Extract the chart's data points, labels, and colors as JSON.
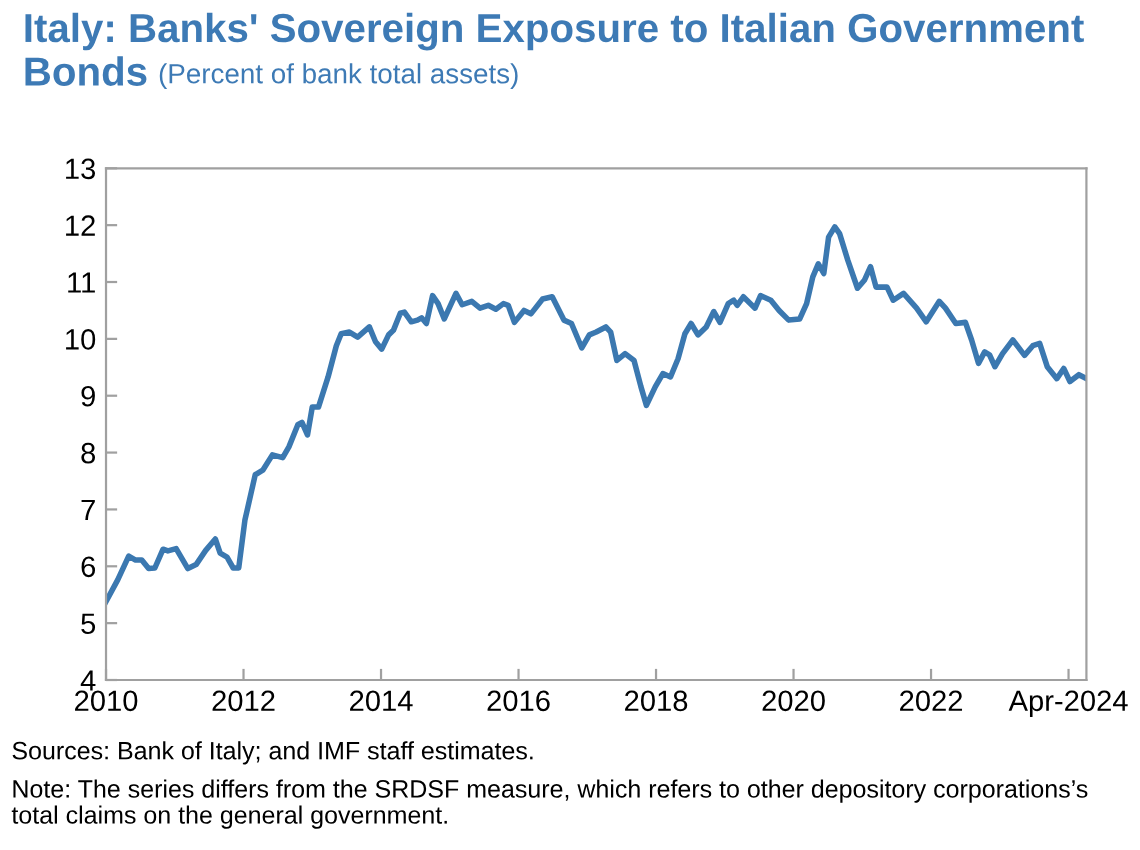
{
  "chart_data": {
    "type": "line",
    "title": "Italy: Banks' Sovereign Exposure to Italian Government Bonds",
    "subtitle": "(Percent of bank total assets)",
    "x": [
      2010.0,
      2010.17,
      2010.33,
      2010.43,
      2010.52,
      2010.62,
      2010.71,
      2010.83,
      2010.9,
      2011.02,
      2011.19,
      2011.31,
      2011.45,
      2011.59,
      2011.66,
      2011.76,
      2011.85,
      2011.93,
      2012.02,
      2012.17,
      2012.28,
      2012.42,
      2012.57,
      2012.66,
      2012.79,
      2012.85,
      2012.93,
      2013.0,
      2013.09,
      2013.23,
      2013.35,
      2013.42,
      2013.54,
      2013.66,
      2013.83,
      2013.92,
      2014.01,
      2014.11,
      2014.18,
      2014.28,
      2014.34,
      2014.44,
      2014.53,
      2014.59,
      2014.66,
      2014.75,
      2014.83,
      2014.92,
      2015.09,
      2015.18,
      2015.32,
      2015.44,
      2015.56,
      2015.67,
      2015.78,
      2015.85,
      2015.94,
      2016.08,
      2016.18,
      2016.35,
      2016.49,
      2016.66,
      2016.77,
      2016.92,
      2017.03,
      2017.13,
      2017.27,
      2017.34,
      2017.43,
      2017.55,
      2017.68,
      2017.78,
      2017.86,
      2017.99,
      2018.1,
      2018.21,
      2018.32,
      2018.42,
      2018.51,
      2018.61,
      2018.73,
      2018.84,
      2018.93,
      2019.05,
      2019.13,
      2019.18,
      2019.27,
      2019.44,
      2019.52,
      2019.67,
      2019.79,
      2019.93,
      2020.09,
      2020.19,
      2020.28,
      2020.36,
      2020.44,
      2020.51,
      2020.6,
      2020.67,
      2020.79,
      2020.93,
      2021.03,
      2021.12,
      2021.2,
      2021.36,
      2021.45,
      2021.6,
      2021.79,
      2021.93,
      2022.12,
      2022.21,
      2022.36,
      2022.5,
      2022.59,
      2022.69,
      2022.78,
      2022.85,
      2022.93,
      2023.04,
      2023.19,
      2023.36,
      2023.48,
      2023.58,
      2023.69,
      2023.83,
      2023.93,
      2024.02,
      2024.15,
      2024.26
    ],
    "series": [
      {
        "color": "#3b78b0",
        "values": [
          5.38,
          5.76,
          6.18,
          6.11,
          6.11,
          5.96,
          5.97,
          6.3,
          6.27,
          6.31,
          5.96,
          6.03,
          6.28,
          6.48,
          6.23,
          6.16,
          5.97,
          5.97,
          6.81,
          7.61,
          7.69,
          7.96,
          7.91,
          8.1,
          8.49,
          8.53,
          8.31,
          8.8,
          8.8,
          9.33,
          9.88,
          10.09,
          10.12,
          10.03,
          10.21,
          9.95,
          9.82,
          10.07,
          10.15,
          10.45,
          10.47,
          10.3,
          10.33,
          10.37,
          10.27,
          10.76,
          10.62,
          10.35,
          10.8,
          10.6,
          10.66,
          10.54,
          10.59,
          10.52,
          10.62,
          10.59,
          10.29,
          10.5,
          10.44,
          10.7,
          10.74,
          10.33,
          10.27,
          9.84,
          10.07,
          10.12,
          10.21,
          10.12,
          9.62,
          9.74,
          9.62,
          9.16,
          8.83,
          9.16,
          9.39,
          9.33,
          9.65,
          10.09,
          10.27,
          10.07,
          10.21,
          10.48,
          10.29,
          10.62,
          10.68,
          10.59,
          10.74,
          10.54,
          10.76,
          10.68,
          10.5,
          10.33,
          10.35,
          10.62,
          11.09,
          11.32,
          11.15,
          11.79,
          11.97,
          11.85,
          11.38,
          10.89,
          11.03,
          11.27,
          10.91,
          10.91,
          10.68,
          10.8,
          10.54,
          10.3,
          10.66,
          10.54,
          10.27,
          10.29,
          9.98,
          9.57,
          9.77,
          9.72,
          9.51,
          9.74,
          9.98,
          9.71,
          9.88,
          9.92,
          9.51,
          9.3,
          9.48,
          9.25,
          9.37,
          9.3
        ]
      }
    ],
    "xlim": [
      2010.0,
      2024.26
    ],
    "xticks": [
      2010,
      2012,
      2014,
      2016,
      2018,
      2020,
      2022,
      {
        "value": 2024.0,
        "label": "Apr-2024"
      }
    ],
    "ylim": [
      4,
      13
    ],
    "yticks": [
      4,
      5,
      6,
      7,
      8,
      9,
      10,
      11,
      12,
      13
    ],
    "grid": false,
    "line_style": "solid",
    "marker": "none",
    "annotations": [
      "Sources: Bank of Italy; and IMF staff estimates.",
      "Note: The series differs from the SRDSF measure, which refers to other depository corporations’s total claims on the general government."
    ]
  }
}
